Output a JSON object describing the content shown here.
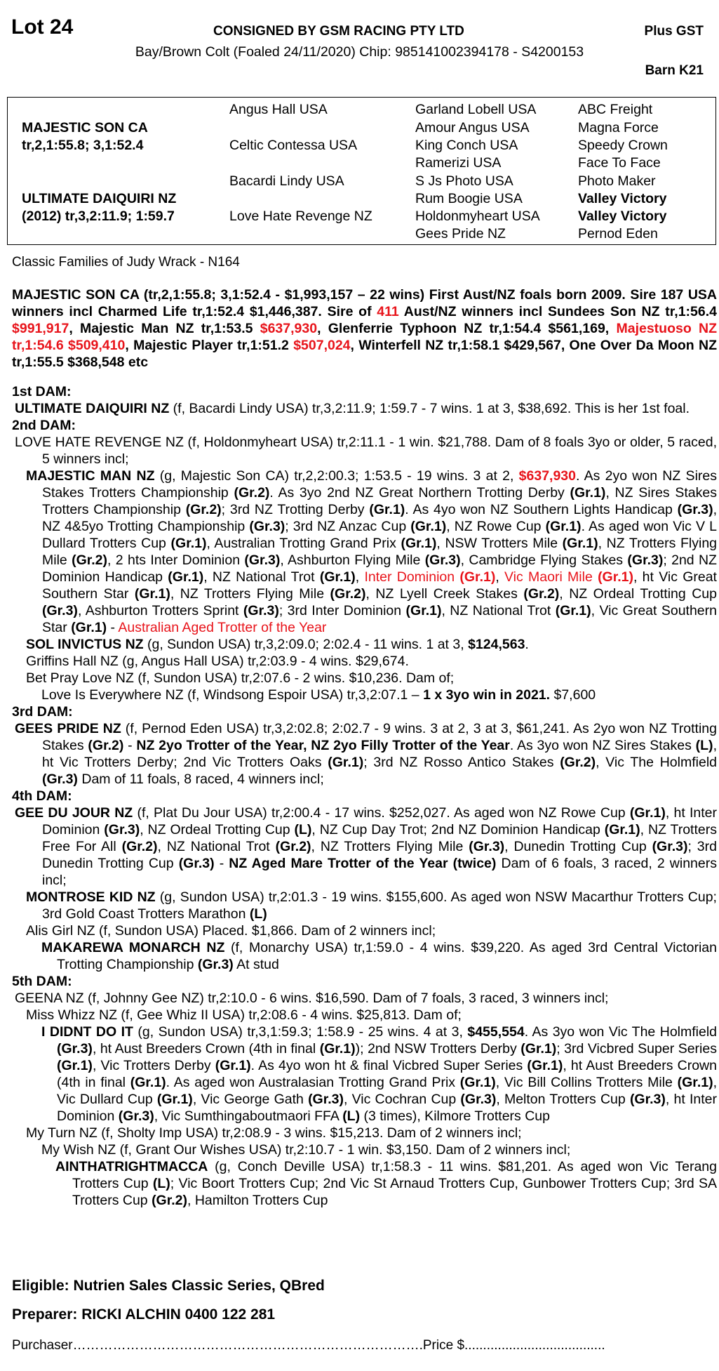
{
  "header": {
    "lot": "Lot 24",
    "consigned": "CONSIGNED BY GSM RACING PTY LTD",
    "plus_gst": "Plus GST",
    "description": "Bay/Brown Colt (Foaled 24/11/2020) Chip: 985141002394178 - S4200153",
    "barn": "Barn K21"
  },
  "pedigree": {
    "sire": {
      "name": "MAJESTIC SON CA",
      "record": "tr,2,1:55.8; 3,1:52.4"
    },
    "dam": {
      "name": "ULTIMATE DAIQUIRI NZ",
      "record": "(2012) tr,3,2:11.9; 1:59.7"
    },
    "gen2": [
      "Angus Hall USA",
      "Celtic Contessa USA",
      "Bacardi Lindy USA",
      "Love Hate Revenge NZ"
    ],
    "gen3": [
      "Garland Lobell USA",
      "Amour Angus USA",
      "King Conch USA",
      "Ramerizi USA",
      "S Js Photo USA",
      "Rum Boogie USA",
      "Holdonmyheart USA",
      "Gees Pride NZ"
    ],
    "gen4": [
      {
        "name": "ABC Freight",
        "bold": false
      },
      {
        "name": "Magna Force",
        "bold": false
      },
      {
        "name": "Speedy Crown",
        "bold": false
      },
      {
        "name": "Face To Face",
        "bold": false
      },
      {
        "name": "Photo Maker",
        "bold": false
      },
      {
        "name": "Valley Victory",
        "bold": true
      },
      {
        "name": "Valley Victory",
        "bold": true
      },
      {
        "name": "Pernod Eden",
        "bold": false
      }
    ]
  },
  "family": "Classic Families of Judy Wrack - N164",
  "colors": {
    "highlight": "#e8141b"
  },
  "sire_paragraph": [
    {
      "t": "MAJESTIC SON CA (tr,2,1:55.8; 3,1:52.4 - $1,993,157 – 22 wins) First Aust/NZ foals born 2009. Sire 187 USA winners incl Charmed Life tr,1:52.4 $1,446,387. Sire of ",
      "s": "b"
    },
    {
      "t": "411",
      "s": "br"
    },
    {
      "t": " Aust/NZ winners incl Sundees Son NZ tr,1:56.4 ",
      "s": "b"
    },
    {
      "t": "$991,917",
      "s": "br"
    },
    {
      "t": ", Majestic Man NZ tr,1:53.5 ",
      "s": "b"
    },
    {
      "t": "$637,930",
      "s": "br"
    },
    {
      "t": ", Glenferrie Typhoon NZ tr,1:54.4 $561,169, ",
      "s": "b"
    },
    {
      "t": "Majestuoso NZ tr,1:54.6 $509,410",
      "s": "br"
    },
    {
      "t": ", Majestic Player tr,1:51.2 ",
      "s": "b"
    },
    {
      "t": "$507,024",
      "s": "br"
    },
    {
      "t": ", Winterfell NZ tr,1:58.1 $429,567, One Over Da Moon NZ tr,1:55.5 $368,548 etc",
      "s": "b"
    }
  ],
  "entries": [
    {
      "level": "hdr",
      "runs": [
        {
          "t": "1st DAM:",
          "s": "b"
        }
      ]
    },
    {
      "level": "l1",
      "runs": [
        {
          "t": "ULTIMATE DAIQUIRI NZ",
          "s": "b"
        },
        {
          "t": " (f, Bacardi Lindy USA) tr,3,2:11.9; 1:59.7 - 7 wins. 1 at 3, $38,692. This is her 1st foal.",
          "s": ""
        }
      ]
    },
    {
      "level": "hdr",
      "runs": [
        {
          "t": "2nd DAM:",
          "s": "b"
        }
      ]
    },
    {
      "level": "l1",
      "runs": [
        {
          "t": "LOVE HATE REVENGE NZ (f, Holdonmyheart USA) tr,2:11.1 - 1 win. $21,788. Dam of 8 foals 3yo or older, 5 raced, 5 winners incl;",
          "s": ""
        }
      ]
    },
    {
      "level": "l2",
      "runs": [
        {
          "t": "MAJESTIC MAN NZ",
          "s": "b"
        },
        {
          "t": " (g, Majestic Son CA) tr,2,2:00.3; 1:53.5 - 19 wins. 3 at 2, ",
          "s": ""
        },
        {
          "t": "$637,930",
          "s": "br"
        },
        {
          "t": ". As 2yo won NZ Sires Stakes Trotters Championship ",
          "s": ""
        },
        {
          "t": "(Gr.2)",
          "s": "b"
        },
        {
          "t": ". As 3yo 2nd NZ Great Northern Trotting Derby ",
          "s": ""
        },
        {
          "t": "(Gr.1)",
          "s": "b"
        },
        {
          "t": ", NZ Sires Stakes Trotters Championship ",
          "s": ""
        },
        {
          "t": "(Gr.2)",
          "s": "b"
        },
        {
          "t": "; 3rd NZ Trotting Derby ",
          "s": ""
        },
        {
          "t": "(Gr.1)",
          "s": "b"
        },
        {
          "t": ". As 4yo won NZ Southern Lights Handicap ",
          "s": ""
        },
        {
          "t": "(Gr.3)",
          "s": "b"
        },
        {
          "t": ", NZ 4&5yo Trotting Championship ",
          "s": ""
        },
        {
          "t": "(Gr.3)",
          "s": "b"
        },
        {
          "t": "; 3rd NZ Anzac Cup ",
          "s": ""
        },
        {
          "t": "(Gr.1)",
          "s": "b"
        },
        {
          "t": ", NZ Rowe Cup ",
          "s": ""
        },
        {
          "t": "(Gr.1)",
          "s": "b"
        },
        {
          "t": ". As aged won Vic V L Dullard Trotters Cup ",
          "s": ""
        },
        {
          "t": "(Gr.1)",
          "s": "b"
        },
        {
          "t": ", Australian Trotting Grand Prix ",
          "s": ""
        },
        {
          "t": "(Gr.1)",
          "s": "b"
        },
        {
          "t": ", NSW Trotters Mile ",
          "s": ""
        },
        {
          "t": "(Gr.1)",
          "s": "b"
        },
        {
          "t": ", NZ Trotters Flying Mile ",
          "s": ""
        },
        {
          "t": "(Gr.2)",
          "s": "b"
        },
        {
          "t": ", 2 hts Inter Dominion ",
          "s": ""
        },
        {
          "t": "(Gr.3)",
          "s": "b"
        },
        {
          "t": ", Ashburton Flying Mile ",
          "s": ""
        },
        {
          "t": "(Gr.3)",
          "s": "b"
        },
        {
          "t": ", Cambridge Flying Stakes ",
          "s": ""
        },
        {
          "t": "(Gr.3)",
          "s": "b"
        },
        {
          "t": "; 2nd NZ Dominion Handicap ",
          "s": ""
        },
        {
          "t": "(Gr.1)",
          "s": "b"
        },
        {
          "t": ", NZ National Trot ",
          "s": ""
        },
        {
          "t": "(Gr.1)",
          "s": "b"
        },
        {
          "t": ", ",
          "s": ""
        },
        {
          "t": "Inter Dominion ",
          "s": "r"
        },
        {
          "t": "(Gr.1)",
          "s": "br"
        },
        {
          "t": ", ",
          "s": ""
        },
        {
          "t": "Vic Maori Mile ",
          "s": "r"
        },
        {
          "t": "(Gr.1)",
          "s": "br"
        },
        {
          "t": ", ht Vic Great Southern Star ",
          "s": ""
        },
        {
          "t": "(Gr.1)",
          "s": "b"
        },
        {
          "t": ", NZ Trotters Flying Mile ",
          "s": ""
        },
        {
          "t": "(Gr.2)",
          "s": "b"
        },
        {
          "t": ", NZ Lyell Creek Stakes ",
          "s": ""
        },
        {
          "t": "(Gr.2)",
          "s": "b"
        },
        {
          "t": ", NZ Ordeal Trotting Cup ",
          "s": ""
        },
        {
          "t": "(Gr.3)",
          "s": "b"
        },
        {
          "t": ", Ashburton Trotters Sprint ",
          "s": ""
        },
        {
          "t": "(Gr.3)",
          "s": "b"
        },
        {
          "t": "; 3rd Inter Dominion ",
          "s": ""
        },
        {
          "t": "(Gr.1)",
          "s": "b"
        },
        {
          "t": ", NZ National Trot ",
          "s": ""
        },
        {
          "t": "(Gr.1)",
          "s": "b"
        },
        {
          "t": ", Vic Great Southern Star ",
          "s": ""
        },
        {
          "t": "(Gr.1)",
          "s": "b"
        },
        {
          "t": " - ",
          "s": ""
        },
        {
          "t": "Australian Aged Trotter of the Year",
          "s": "r"
        }
      ]
    },
    {
      "level": "l2",
      "runs": [
        {
          "t": "SOL INVICTUS NZ",
          "s": "b"
        },
        {
          "t": " (g, Sundon USA) tr,3,2:09.0; 2:02.4 - 11 wins. 1 at 3, ",
          "s": ""
        },
        {
          "t": "$124,563",
          "s": "b"
        },
        {
          "t": ".",
          "s": ""
        }
      ]
    },
    {
      "level": "l2",
      "runs": [
        {
          "t": "Griffins Hall NZ (g, Angus Hall USA) tr,2:03.9 - 4 wins. $29,674.",
          "s": ""
        }
      ]
    },
    {
      "level": "l2",
      "runs": [
        {
          "t": "Bet Pray Love NZ (f, Sundon USA) tr,2:07.6 - 2 wins. $10,236. Dam of;",
          "s": ""
        }
      ]
    },
    {
      "level": "l3",
      "runs": [
        {
          "t": "Love Is Everywhere NZ (f, Windsong Espoir USA) tr,3,2:07.1 – ",
          "s": ""
        },
        {
          "t": "1 x 3yo win in 2021.",
          "s": "b"
        },
        {
          "t": " $7,600",
          "s": ""
        }
      ]
    },
    {
      "level": "hdr",
      "runs": [
        {
          "t": "3rd DAM:",
          "s": "b"
        }
      ]
    },
    {
      "level": "l1",
      "runs": [
        {
          "t": "GEES PRIDE NZ",
          "s": "b"
        },
        {
          "t": " (f, Pernod Eden USA) tr,3,2:02.8; 2:02.7 - 9 wins. 3 at 2, 3 at 3, $61,241. As 2yo won NZ Trotting Stakes ",
          "s": ""
        },
        {
          "t": "(Gr.2)",
          "s": "b"
        },
        {
          "t": " - ",
          "s": ""
        },
        {
          "t": "NZ 2yo Trotter of the Year, NZ 2yo Filly Trotter of the Year",
          "s": "b"
        },
        {
          "t": ". As 3yo won NZ Sires Stakes ",
          "s": ""
        },
        {
          "t": "(L)",
          "s": "b"
        },
        {
          "t": ", ht Vic Trotters Derby; 2nd Vic Trotters Oaks ",
          "s": ""
        },
        {
          "t": "(Gr.1)",
          "s": "b"
        },
        {
          "t": "; 3rd NZ Rosso Antico Stakes ",
          "s": ""
        },
        {
          "t": "(Gr.2)",
          "s": "b"
        },
        {
          "t": ", Vic The Holmfield ",
          "s": ""
        },
        {
          "t": "(Gr.3)",
          "s": "b"
        },
        {
          "t": " Dam of 11 foals, 8 raced, 4 winners incl;",
          "s": ""
        }
      ]
    },
    {
      "level": "hdr",
      "runs": [
        {
          "t": "4th DAM:",
          "s": "b"
        }
      ]
    },
    {
      "level": "l1",
      "runs": [
        {
          "t": "GEE DU JOUR NZ",
          "s": "b"
        },
        {
          "t": " (f, Plat Du Jour USA) tr,2:00.4 - 17 wins. $252,027. As aged won NZ Rowe Cup ",
          "s": ""
        },
        {
          "t": "(Gr.1)",
          "s": "b"
        },
        {
          "t": ", ht Inter Dominion ",
          "s": ""
        },
        {
          "t": "(Gr.3)",
          "s": "b"
        },
        {
          "t": ", NZ Ordeal Trotting Cup ",
          "s": ""
        },
        {
          "t": "(L)",
          "s": "b"
        },
        {
          "t": ", NZ Cup Day Trot; 2nd NZ Dominion Handicap ",
          "s": ""
        },
        {
          "t": "(Gr.1)",
          "s": "b"
        },
        {
          "t": ", NZ Trotters Free For All ",
          "s": ""
        },
        {
          "t": "(Gr.2)",
          "s": "b"
        },
        {
          "t": ", NZ National Trot ",
          "s": ""
        },
        {
          "t": "(Gr.2)",
          "s": "b"
        },
        {
          "t": ", NZ Trotters Flying Mile ",
          "s": ""
        },
        {
          "t": "(Gr.3)",
          "s": "b"
        },
        {
          "t": ", Dunedin Trotting Cup ",
          "s": ""
        },
        {
          "t": "(Gr.3)",
          "s": "b"
        },
        {
          "t": "; 3rd Dunedin Trotting Cup ",
          "s": ""
        },
        {
          "t": "(Gr.3)",
          "s": "b"
        },
        {
          "t": " - ",
          "s": ""
        },
        {
          "t": "NZ Aged Mare Trotter of the Year (twice)",
          "s": "b"
        },
        {
          "t": " Dam of 6 foals, 3 raced, 2 winners incl;",
          "s": ""
        }
      ]
    },
    {
      "level": "l2",
      "runs": [
        {
          "t": "MONTROSE KID NZ",
          "s": "b"
        },
        {
          "t": " (g, Sundon USA) tr,2:01.3 - 19 wins. $155,600. As aged won NSW Macarthur Trotters Cup; 3rd Gold Coast Trotters Marathon ",
          "s": ""
        },
        {
          "t": "(L)",
          "s": "b"
        }
      ]
    },
    {
      "level": "l2",
      "runs": [
        {
          "t": "Alis Girl NZ (f, Sundon USA) Placed. $1,866. Dam of 2 winners incl;",
          "s": ""
        }
      ]
    },
    {
      "level": "l3",
      "runs": [
        {
          "t": "MAKAREWA MONARCH NZ",
          "s": "b"
        },
        {
          "t": " (f, Monarchy USA) tr,1:59.0 - 4 wins. $39,220. As aged 3rd Central Victorian Trotting Championship ",
          "s": ""
        },
        {
          "t": "(Gr.3)",
          "s": "b"
        },
        {
          "t": " At stud",
          "s": ""
        }
      ]
    },
    {
      "level": "hdr",
      "runs": [
        {
          "t": "5th DAM:",
          "s": "b"
        }
      ]
    },
    {
      "level": "l1",
      "runs": [
        {
          "t": "GEENA NZ (f, Johnny Gee NZ) tr,2:10.0 - 6 wins. $16,590. Dam of 7 foals, 3 raced, 3 winners incl;",
          "s": ""
        }
      ]
    },
    {
      "level": "l2",
      "runs": [
        {
          "t": "Miss Whizz NZ (f, Gee Whiz II USA) tr,2:08.6 - 4 wins. $25,813. Dam of;",
          "s": ""
        }
      ]
    },
    {
      "level": "l3",
      "runs": [
        {
          "t": "I DIDNT DO IT",
          "s": "b"
        },
        {
          "t": " (g, Sundon USA) tr,3,1:59.3; 1:58.9 - 25 wins. 4 at 3, ",
          "s": ""
        },
        {
          "t": "$455,554",
          "s": "b"
        },
        {
          "t": ". As 3yo won Vic The Holmfield ",
          "s": ""
        },
        {
          "t": "(Gr.3)",
          "s": "b"
        },
        {
          "t": ", ht Aust Breeders Crown (4th in final ",
          "s": ""
        },
        {
          "t": "(Gr.1)",
          "s": "b"
        },
        {
          "t": "); 2nd NSW Trotters Derby ",
          "s": ""
        },
        {
          "t": "(Gr.1)",
          "s": "b"
        },
        {
          "t": "; 3rd Vicbred Super Series ",
          "s": ""
        },
        {
          "t": "(Gr.1)",
          "s": "b"
        },
        {
          "t": ", Vic Trotters Derby ",
          "s": ""
        },
        {
          "t": "(Gr.1)",
          "s": "b"
        },
        {
          "t": ". As 4yo won ht & final Vicbred Super Series ",
          "s": ""
        },
        {
          "t": "(Gr.1)",
          "s": "b"
        },
        {
          "t": ", ht Aust Breeders Crown (4th in final ",
          "s": ""
        },
        {
          "t": "(Gr.1)",
          "s": "b"
        },
        {
          "t": ". As aged won Australasian Trotting Grand Prix ",
          "s": ""
        },
        {
          "t": "(Gr.1)",
          "s": "b"
        },
        {
          "t": ", Vic Bill Collins Trotters Mile ",
          "s": ""
        },
        {
          "t": "(Gr.1)",
          "s": "b"
        },
        {
          "t": ", Vic Dullard Cup ",
          "s": ""
        },
        {
          "t": "(Gr.1)",
          "s": "b"
        },
        {
          "t": ", Vic George Gath ",
          "s": ""
        },
        {
          "t": "(Gr.3)",
          "s": "b"
        },
        {
          "t": ", Vic Cochran Cup ",
          "s": ""
        },
        {
          "t": "(Gr.3)",
          "s": "b"
        },
        {
          "t": ", Melton Trotters Cup ",
          "s": ""
        },
        {
          "t": "(Gr.3)",
          "s": "b"
        },
        {
          "t": ", ht Inter Dominion ",
          "s": ""
        },
        {
          "t": "(Gr.3)",
          "s": "b"
        },
        {
          "t": ", Vic Sumthingaboutmaori FFA ",
          "s": ""
        },
        {
          "t": "(L)",
          "s": "b"
        },
        {
          "t": " (3 times), Kilmore Trotters Cup",
          "s": ""
        }
      ]
    },
    {
      "level": "l2",
      "runs": [
        {
          "t": "My Turn NZ (f, Sholty Imp USA) tr,2:08.9 - 3 wins. $15,213. Dam of 2 winners incl;",
          "s": ""
        }
      ]
    },
    {
      "level": "l3",
      "runs": [
        {
          "t": "My Wish NZ (f, Grant Our Wishes USA) tr,2:10.7 - 1 win. $3,150. Dam of 2 winners incl;",
          "s": ""
        }
      ]
    },
    {
      "level": "l4",
      "runs": [
        {
          "t": "AINTHATRIGHTMACCA",
          "s": "b"
        },
        {
          "t": " (g, Conch Deville USA) tr,1:58.3 - 11 wins. $81,201. As aged won Vic Terang Trotters Cup ",
          "s": ""
        },
        {
          "t": "(L)",
          "s": "b"
        },
        {
          "t": "; Vic Boort Trotters Cup; 2nd Vic St Arnaud Trotters Cup, Gunbower Trotters Cup; 3rd SA Trotters Cup ",
          "s": ""
        },
        {
          "t": "(Gr.2)",
          "s": "b"
        },
        {
          "t": ", Hamilton Trotters Cup",
          "s": ""
        }
      ]
    }
  ],
  "footer": {
    "eligible": "Eligible: Nutrien Sales Classic Series, QBred",
    "preparer": "Preparer: RICKI ALCHIN 0400 122 281",
    "purchaser_label": "Purchaser",
    "purchaser_dots": "……………………………………………………………………",
    "price_label": ".Price $",
    "price_dots": "......................................"
  }
}
